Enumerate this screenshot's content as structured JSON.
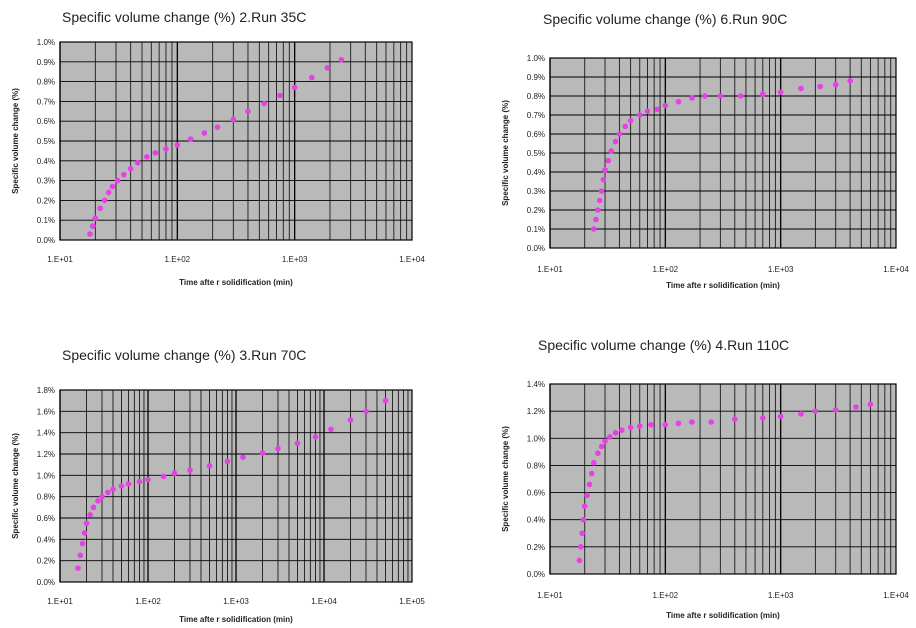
{
  "colors": {
    "plot_bg": "#b9b9b9",
    "grid_minor": "#1a1a1a",
    "grid_major": "#000000",
    "series": "#e640e6"
  },
  "chart_data": [
    {
      "type": "scatter",
      "title": "Specific volume change (%)  2.Run 35C",
      "xlabel": "Time afte r solidification  (min)",
      "ylabel": "Specific volume change (%)",
      "xscale": "log",
      "xlim": [
        10,
        10000
      ],
      "ylim": [
        0,
        1.0
      ],
      "xticks": [
        "1.E+01",
        "1.E+02",
        "1.E+03",
        "1.E+04"
      ],
      "yticks": [
        "0.0%",
        "0.1%",
        "0.2%",
        "0.3%",
        "0.4%",
        "0.5%",
        "0.6%",
        "0.7%",
        "0.8%",
        "0.9%",
        "1.0%"
      ],
      "grid": true,
      "series": [
        {
          "x": [
            18,
            19,
            20,
            22,
            24,
            26,
            28,
            31,
            35,
            40,
            46,
            55,
            65,
            80,
            100,
            130,
            170,
            220,
            300,
            400,
            550,
            750,
            1000,
            1400,
            1900,
            2500
          ],
          "y": [
            0.03,
            0.07,
            0.11,
            0.16,
            0.2,
            0.24,
            0.27,
            0.3,
            0.33,
            0.36,
            0.39,
            0.42,
            0.44,
            0.46,
            0.48,
            0.51,
            0.54,
            0.57,
            0.61,
            0.65,
            0.69,
            0.73,
            0.77,
            0.82,
            0.87,
            0.91
          ]
        }
      ]
    },
    {
      "type": "scatter",
      "title": "Specific volume change (%)  6.Run  90C",
      "xlabel": "Time afte r solidification  (min)",
      "ylabel": "Specific volume change (%)",
      "xscale": "log",
      "xlim": [
        10,
        10000
      ],
      "ylim": [
        0,
        1.0
      ],
      "xticks": [
        "1.E+01",
        "1.E+02",
        "1.E+03",
        "1.E+04"
      ],
      "yticks": [
        "0.0%",
        "0.1%",
        "0.2%",
        "0.3%",
        "0.4%",
        "0.5%",
        "0.6%",
        "0.7%",
        "0.8%",
        "0.9%",
        "1.0%"
      ],
      "grid": true,
      "series": [
        {
          "x": [
            24,
            25,
            26,
            27,
            28,
            29,
            30,
            32,
            34,
            37,
            40,
            45,
            50,
            60,
            70,
            85,
            100,
            130,
            170,
            220,
            300,
            450,
            700,
            1000,
            1500,
            2200,
            3000,
            4000
          ],
          "y": [
            0.1,
            0.15,
            0.2,
            0.25,
            0.3,
            0.36,
            0.41,
            0.46,
            0.51,
            0.56,
            0.6,
            0.64,
            0.67,
            0.7,
            0.72,
            0.73,
            0.75,
            0.77,
            0.79,
            0.8,
            0.8,
            0.8,
            0.81,
            0.82,
            0.84,
            0.85,
            0.86,
            0.88
          ]
        }
      ]
    },
    {
      "type": "scatter",
      "title": "Specific volume change (%)  3.Run 70C",
      "xlabel": "Time afte r solidification  (min)",
      "ylabel": "Specific volume change (%)",
      "xscale": "log",
      "xlim": [
        10,
        100000
      ],
      "ylim": [
        0,
        1.8
      ],
      "xticks": [
        "1.E+01",
        "1.E+02",
        "1.E+03",
        "1.E+04",
        "1.E+05"
      ],
      "yticks": [
        "0.0%",
        "0.2%",
        "0.4%",
        "0.6%",
        "0.8%",
        "1.0%",
        "1.2%",
        "1.4%",
        "1.6%",
        "1.8%"
      ],
      "grid": true,
      "series": [
        {
          "x": [
            16,
            17,
            18,
            19,
            20,
            22,
            24,
            27,
            30,
            35,
            40,
            50,
            60,
            80,
            100,
            150,
            200,
            300,
            500,
            800,
            1200,
            2000,
            3000,
            5000,
            8000,
            12000,
            20000,
            30000,
            50000
          ],
          "y": [
            0.13,
            0.25,
            0.36,
            0.46,
            0.55,
            0.63,
            0.7,
            0.76,
            0.8,
            0.84,
            0.87,
            0.9,
            0.92,
            0.94,
            0.96,
            0.99,
            1.02,
            1.05,
            1.09,
            1.13,
            1.17,
            1.21,
            1.25,
            1.3,
            1.36,
            1.43,
            1.52,
            1.6,
            1.7
          ]
        }
      ]
    },
    {
      "type": "scatter",
      "title": "Specific volume change (%)  4.Run  110C",
      "xlabel": "Time afte r solidification  (min)",
      "ylabel": "Specific volume change (%)",
      "xscale": "log",
      "xlim": [
        10,
        10000
      ],
      "ylim": [
        0,
        1.4
      ],
      "xticks": [
        "1.E+01",
        "1.E+02",
        "1.E+03",
        "1.E+04"
      ],
      "yticks": [
        "0.0%",
        "0.2%",
        "0.4%",
        "0.6%",
        "0.8%",
        "1.0%",
        "1.2%",
        "1.4%"
      ],
      "grid": true,
      "series": [
        {
          "x": [
            18,
            18.5,
            19,
            19.5,
            20,
            21,
            22,
            23,
            24,
            26,
            28,
            30,
            33,
            37,
            42,
            50,
            60,
            75,
            100,
            130,
            170,
            250,
            400,
            700,
            1000,
            1500,
            2000,
            3000,
            4500,
            6000
          ],
          "y": [
            0.1,
            0.2,
            0.3,
            0.4,
            0.5,
            0.58,
            0.66,
            0.74,
            0.82,
            0.89,
            0.94,
            0.98,
            1.01,
            1.04,
            1.06,
            1.08,
            1.09,
            1.1,
            1.1,
            1.11,
            1.12,
            1.12,
            1.14,
            1.15,
            1.16,
            1.18,
            1.2,
            1.21,
            1.23,
            1.25
          ]
        }
      ]
    }
  ]
}
